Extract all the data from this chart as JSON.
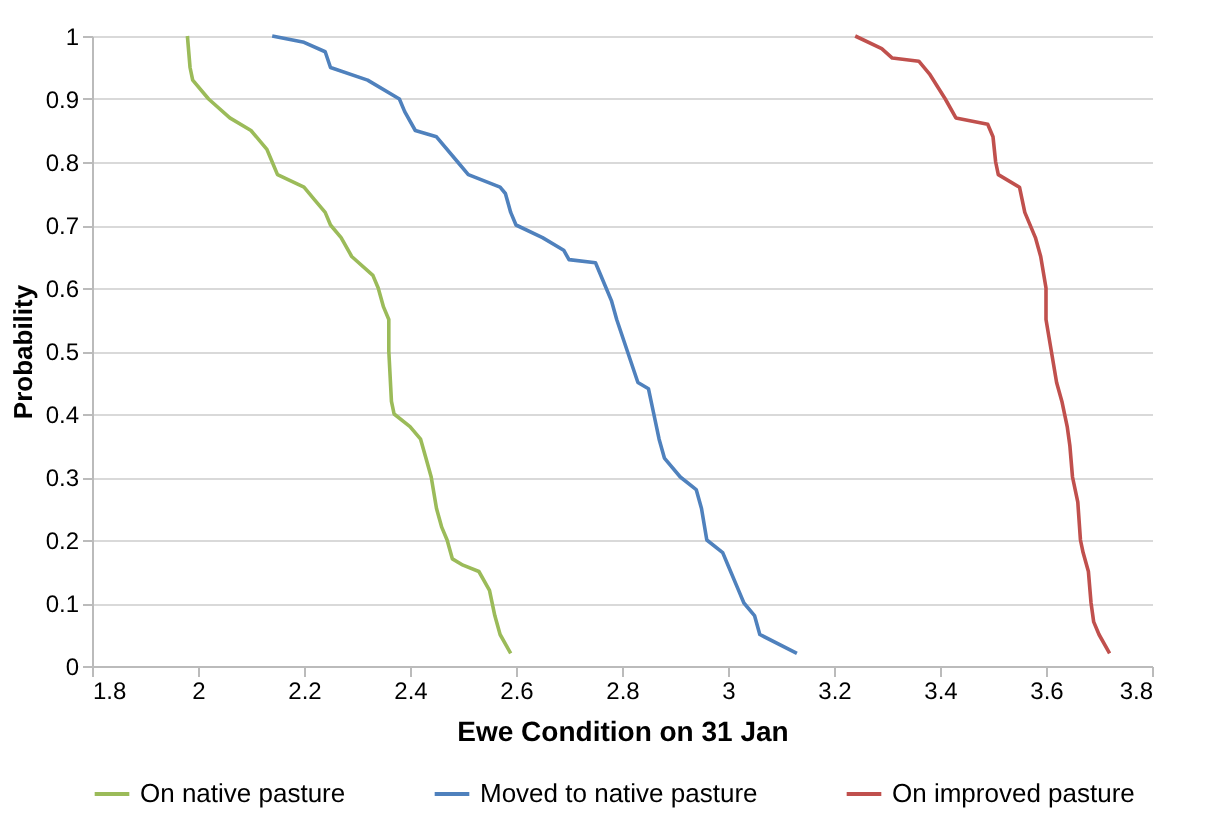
{
  "chart_data": {
    "type": "line",
    "xlabel": "Ewe Condition on 31 Jan",
    "ylabel": "Probability",
    "xlim": [
      1.8,
      3.8
    ],
    "xticks": [
      1.8,
      2,
      2.2,
      2.4,
      2.6,
      2.8,
      3,
      3.2,
      3.4,
      3.6,
      3.8
    ],
    "ylim": [
      0,
      1
    ],
    "yticks": [
      0,
      0.1,
      0.2,
      0.3,
      0.4,
      0.5,
      0.6,
      0.7,
      0.8,
      0.9,
      1
    ],
    "grid": "y",
    "legend": "bottom",
    "marker": "none",
    "line_style": "solid",
    "series": [
      {
        "name": "On native pasture",
        "color": "#9bbb59",
        "x": [
          1.98,
          1.985,
          1.99,
          2.02,
          2.06,
          2.1,
          2.13,
          2.14,
          2.15,
          2.2,
          2.22,
          2.24,
          2.25,
          2.27,
          2.29,
          2.33,
          2.34,
          2.35,
          2.36,
          2.36,
          2.365,
          2.37,
          2.4,
          2.42,
          2.43,
          2.44,
          2.45,
          2.46,
          2.47,
          2.48,
          2.5,
          2.53,
          2.55,
          2.56,
          2.57,
          2.59
        ],
        "values": [
          1,
          0.95,
          0.93,
          0.9,
          0.87,
          0.85,
          0.82,
          0.8,
          0.78,
          0.76,
          0.74,
          0.72,
          0.7,
          0.68,
          0.65,
          0.62,
          0.6,
          0.57,
          0.55,
          0.5,
          0.42,
          0.4,
          0.38,
          0.36,
          0.33,
          0.3,
          0.25,
          0.22,
          0.2,
          0.17,
          0.16,
          0.15,
          0.12,
          0.08,
          0.05,
          0.02
        ]
      },
      {
        "name": "Moved to native pasture",
        "color": "#4f81bd",
        "x": [
          2.14,
          2.2,
          2.24,
          2.25,
          2.32,
          2.38,
          2.39,
          2.41,
          2.45,
          2.49,
          2.51,
          2.57,
          2.58,
          2.59,
          2.6,
          2.65,
          2.69,
          2.7,
          2.75,
          2.77,
          2.78,
          2.79,
          2.81,
          2.83,
          2.85,
          2.86,
          2.87,
          2.88,
          2.91,
          2.94,
          2.95,
          2.96,
          2.99,
          3,
          3.02,
          3.03,
          3.05,
          3.06,
          3.13
        ],
        "values": [
          1,
          0.99,
          0.975,
          0.95,
          0.93,
          0.9,
          0.88,
          0.85,
          0.84,
          0.8,
          0.78,
          0.76,
          0.75,
          0.72,
          0.7,
          0.68,
          0.66,
          0.645,
          0.64,
          0.6,
          0.58,
          0.55,
          0.5,
          0.45,
          0.44,
          0.4,
          0.36,
          0.33,
          0.3,
          0.28,
          0.25,
          0.2,
          0.18,
          0.16,
          0.12,
          0.1,
          0.08,
          0.05,
          0.02
        ]
      },
      {
        "name": "On improved pasture",
        "color": "#c0504d",
        "x": [
          3.24,
          3.29,
          3.31,
          3.36,
          3.38,
          3.41,
          3.43,
          3.49,
          3.5,
          3.505,
          3.51,
          3.55,
          3.56,
          3.58,
          3.59,
          3.6,
          3.6,
          3.61,
          3.62,
          3.63,
          3.64,
          3.645,
          3.65,
          3.66,
          3.665,
          3.67,
          3.68,
          3.685,
          3.69,
          3.7,
          3.72
        ],
        "values": [
          1,
          0.98,
          0.965,
          0.96,
          0.94,
          0.9,
          0.87,
          0.86,
          0.84,
          0.8,
          0.78,
          0.76,
          0.72,
          0.68,
          0.65,
          0.6,
          0.55,
          0.5,
          0.45,
          0.42,
          0.38,
          0.35,
          0.3,
          0.26,
          0.2,
          0.18,
          0.15,
          0.1,
          0.07,
          0.05,
          0.02
        ]
      }
    ]
  }
}
